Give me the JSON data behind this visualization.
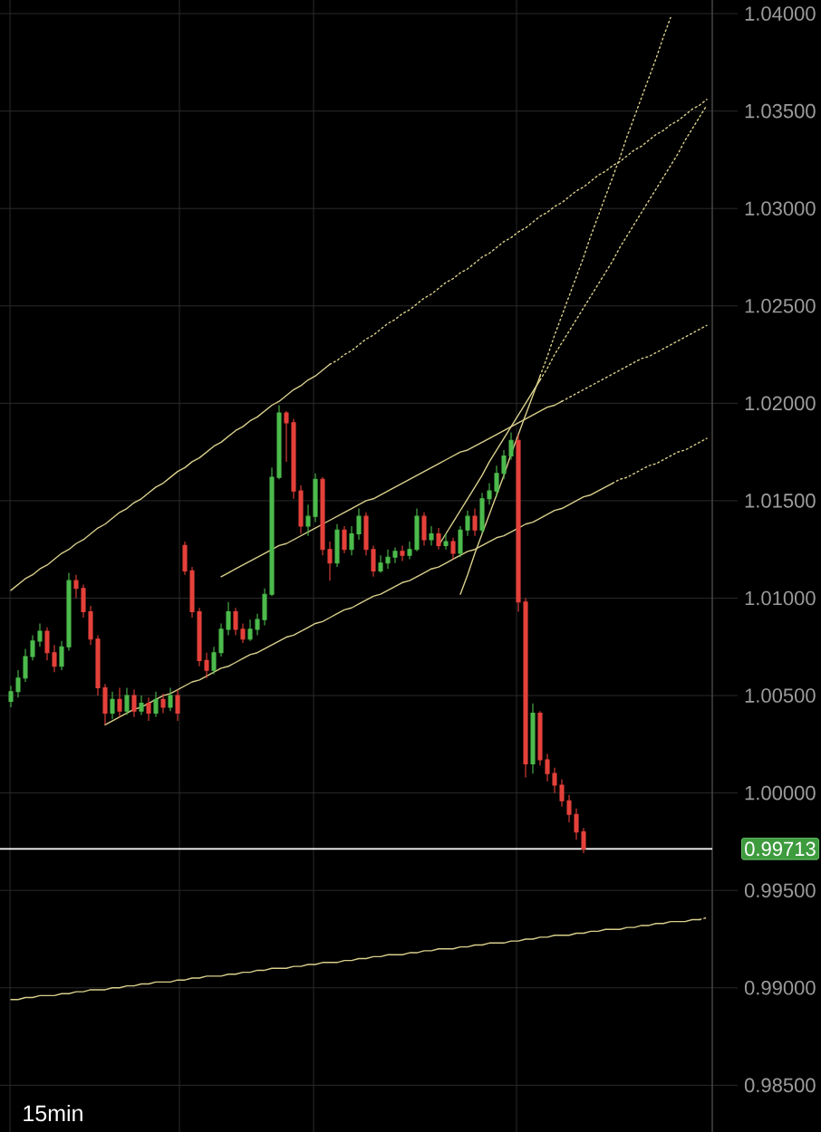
{
  "chart_data": {
    "type": "candlestick",
    "categories": [
      null,
      null,
      null,
      null,
      null,
      null,
      null,
      null,
      null,
      null,
      null,
      null,
      null,
      null,
      null,
      null,
      null,
      null,
      null,
      null,
      null,
      null,
      null,
      null,
      null,
      null,
      null,
      null,
      null,
      null,
      null,
      null,
      null,
      null,
      null,
      null,
      null,
      null,
      null,
      null,
      null,
      null,
      null,
      null,
      null,
      null,
      null,
      null,
      null,
      null,
      null,
      null,
      null,
      null,
      null,
      null,
      null,
      null,
      null,
      null,
      null,
      null,
      null,
      null,
      null,
      null,
      null,
      null,
      null,
      null,
      null,
      null,
      null,
      null,
      null,
      null,
      null,
      null,
      null,
      null,
      null,
      null,
      null,
      null,
      null,
      null,
      null,
      null,
      null,
      null,
      null,
      null,
      null,
      null,
      null,
      null,
      null
    ],
    "ohlc": [
      [
        1.0047,
        1.0055,
        1.0044,
        1.0052
      ],
      [
        1.0052,
        1.0063,
        1.0049,
        1.0059
      ],
      [
        1.0059,
        1.0074,
        1.0057,
        1.007
      ],
      [
        1.007,
        1.0081,
        1.0068,
        1.0078
      ],
      [
        1.0078,
        1.0087,
        1.0075,
        1.0083
      ],
      [
        1.0083,
        1.0085,
        1.0068,
        1.0072
      ],
      [
        1.0072,
        1.0076,
        1.0062,
        1.0065
      ],
      [
        1.0065,
        1.0078,
        1.0063,
        1.0075
      ],
      [
        1.0075,
        1.0113,
        1.0073,
        1.0109
      ],
      [
        1.0109,
        1.0112,
        1.01,
        1.0105
      ],
      [
        1.0105,
        1.0107,
        1.009,
        1.0093
      ],
      [
        1.0093,
        1.0096,
        1.0076,
        1.0079
      ],
      [
        1.0079,
        1.0081,
        1.005,
        1.0054
      ],
      [
        1.0054,
        1.0056,
        1.0035,
        1.0041
      ],
      [
        1.0041,
        1.0052,
        1.0038,
        1.0048
      ],
      [
        1.0048,
        1.0054,
        1.0039,
        1.0042
      ],
      [
        1.0042,
        1.0054,
        1.004,
        1.005
      ],
      [
        1.005,
        1.0053,
        1.0039,
        1.0042
      ],
      [
        1.0042,
        1.005,
        1.004,
        1.0046
      ],
      [
        1.0046,
        1.0049,
        1.0037,
        1.0041
      ],
      [
        1.0041,
        1.0052,
        1.0039,
        1.0048
      ],
      [
        1.0048,
        1.0051,
        1.0041,
        1.0044
      ],
      [
        1.0044,
        1.0054,
        1.0042,
        1.005
      ],
      [
        1.005,
        1.0053,
        1.0037,
        1.0041
      ],
      [
        1.0127,
        1.0129,
        1.0112,
        1.0114
      ],
      [
        1.0114,
        1.0116,
        1.009,
        1.0093
      ],
      [
        1.0093,
        1.0095,
        1.0065,
        1.0068
      ],
      [
        1.0068,
        1.0072,
        1.0059,
        1.0063
      ],
      [
        1.0063,
        1.0075,
        1.0061,
        1.0072
      ],
      [
        1.0072,
        1.0087,
        1.007,
        1.0084
      ],
      [
        1.0084,
        1.0098,
        1.0081,
        1.0093
      ],
      [
        1.0093,
        1.0095,
        1.0081,
        1.0084
      ],
      [
        1.0084,
        1.0087,
        1.0077,
        1.0079
      ],
      [
        1.0079,
        1.0089,
        1.0078,
        1.0084
      ],
      [
        1.0084,
        1.0092,
        1.0081,
        1.0089
      ],
      [
        1.0089,
        1.0105,
        1.0086,
        1.0102
      ],
      [
        1.0102,
        1.0167,
        1.0101,
        1.0162
      ],
      [
        1.0162,
        1.0199,
        1.0161,
        1.0195
      ],
      [
        1.0195,
        1.0196,
        1.017,
        1.019
      ],
      [
        1.019,
        1.0192,
        1.0151,
        1.0155
      ],
      [
        1.0155,
        1.0158,
        1.0133,
        1.0137
      ],
      [
        1.0137,
        1.0148,
        1.0132,
        1.0142
      ],
      [
        1.0142,
        1.0164,
        1.0139,
        1.0161
      ],
      [
        1.0161,
        1.0162,
        1.0122,
        1.0125
      ],
      [
        1.0125,
        1.0129,
        1.0109,
        1.0118
      ],
      [
        1.0118,
        1.0138,
        1.0116,
        1.0135
      ],
      [
        1.0135,
        1.0137,
        1.0123,
        1.0125
      ],
      [
        1.0125,
        1.0137,
        1.0122,
        1.0133
      ],
      [
        1.0133,
        1.0146,
        1.013,
        1.0142
      ],
      [
        1.0142,
        1.0144,
        1.0122,
        1.0125
      ],
      [
        1.0125,
        1.0127,
        1.0111,
        1.0114
      ],
      [
        1.0114,
        1.0122,
        1.0113,
        1.0118
      ],
      [
        1.0118,
        1.0125,
        1.0115,
        1.0121
      ],
      [
        1.0121,
        1.0126,
        1.0118,
        1.0124
      ],
      [
        1.0124,
        1.0127,
        1.0119,
        1.0122
      ],
      [
        1.0122,
        1.0129,
        1.012,
        1.0125
      ],
      [
        1.0125,
        1.0146,
        1.0124,
        1.0142
      ],
      [
        1.0142,
        1.0144,
        1.0127,
        1.013
      ],
      [
        1.013,
        1.0137,
        1.0127,
        1.0133
      ],
      [
        1.0133,
        1.0136,
        1.0125,
        1.0127
      ],
      [
        1.0127,
        1.0133,
        1.0125,
        1.0129
      ],
      [
        1.0129,
        1.0131,
        1.012,
        1.0123
      ],
      [
        1.0123,
        1.0137,
        1.0121,
        1.0135
      ],
      [
        1.0135,
        1.0145,
        1.0132,
        1.0142
      ],
      [
        1.0142,
        1.0146,
        1.0132,
        1.0135
      ],
      [
        1.0135,
        1.0154,
        1.0133,
        1.0151
      ],
      [
        1.0151,
        1.0159,
        1.0148,
        1.0155
      ],
      [
        1.0155,
        1.0168,
        1.0152,
        1.0164
      ],
      [
        1.0164,
        1.0176,
        1.0161,
        1.0173
      ],
      [
        1.0173,
        1.0185,
        1.0171,
        1.0181
      ],
      [
        1.0181,
        1.0184,
        1.0093,
        1.0098
      ],
      [
        1.0098,
        1.01,
        1.0008,
        1.0015
      ],
      [
        1.0015,
        1.0046,
        1.001,
        1.0041
      ],
      [
        1.0041,
        1.0042,
        1.0014,
        1.0017
      ],
      [
        1.0017,
        1.002,
        1.0006,
        1.001
      ],
      [
        1.001,
        1.0013,
        1.0,
        1.0004
      ],
      [
        1.0004,
        1.0007,
        0.9993,
        0.9996
      ],
      [
        0.9996,
        0.9999,
        0.9985,
        0.9989
      ],
      [
        0.9989,
        0.9992,
        0.9976,
        0.998
      ],
      [
        0.998,
        0.9982,
        0.9969,
        0.99713
      ],
      null,
      null,
      null,
      null,
      null,
      null,
      null,
      null,
      null,
      null,
      null,
      null,
      null,
      null,
      null,
      null,
      null
    ],
    "colors": [
      "#4cbb4c",
      "#4cbb4c",
      "#4cbb4c",
      "#4cbb4c",
      "#4cbb4c",
      "#e5413b",
      "#e5413b",
      "#4cbb4c",
      "#4cbb4c",
      "#e5413b",
      "#e5413b",
      "#e5413b",
      "#e5413b",
      "#e5413b",
      "#4cbb4c",
      "#e5413b",
      "#4cbb4c",
      "#e5413b",
      "#4cbb4c",
      "#e5413b",
      "#4cbb4c",
      "#e5413b",
      "#4cbb4c",
      "#e5413b",
      "#e5413b",
      "#e5413b",
      "#e5413b",
      "#e5413b",
      "#4cbb4c",
      "#4cbb4c",
      "#4cbb4c",
      "#e5413b",
      "#e5413b",
      "#4cbb4c",
      "#4cbb4c",
      "#4cbb4c",
      "#4cbb4c",
      "#4cbb4c",
      "#e5413b",
      "#e5413b",
      "#e5413b",
      "#4cbb4c",
      "#4cbb4c",
      "#e5413b",
      "#e5413b",
      "#4cbb4c",
      "#e5413b",
      "#4cbb4c",
      "#4cbb4c",
      "#e5413b",
      "#e5413b",
      "#4cbb4c",
      "#4cbb4c",
      "#4cbb4c",
      "#e5413b",
      "#4cbb4c",
      "#4cbb4c",
      "#e5413b",
      "#4cbb4c",
      "#e5413b",
      "#4cbb4c",
      "#e5413b",
      "#4cbb4c",
      "#4cbb4c",
      "#e5413b",
      "#4cbb4c",
      "#4cbb4c",
      "#4cbb4c",
      "#4cbb4c",
      "#4cbb4c",
      "#e5413b",
      "#e5413b",
      "#4cbb4c",
      "#e5413b",
      "#e5413b",
      "#e5413b",
      "#e5413b",
      "#e5413b",
      "#e5413b",
      "#e5413b",
      null,
      null,
      null,
      null,
      null,
      null,
      null,
      null,
      null,
      null,
      null,
      null,
      null,
      null,
      null,
      null,
      null
    ],
    "series": [
      {
        "type": "line",
        "color": "#d9cf8c",
        "line_style": "solid",
        "values": [
          1.0104,
          1.0107,
          1.011,
          1.0112,
          1.0115,
          1.0117,
          1.012,
          1.0123,
          1.0125,
          1.0128,
          1.013,
          1.0133,
          1.0136,
          1.0138,
          1.0141,
          1.0144,
          1.0146,
          1.0149,
          1.0151,
          1.0154,
          1.0157,
          1.0159,
          1.0162,
          1.0165,
          1.0167,
          1.017,
          1.0172,
          1.0175,
          1.0178,
          1.018,
          1.0183,
          1.0186,
          1.0188,
          1.0191,
          1.0193,
          1.0196,
          1.0199,
          1.0201,
          1.0204,
          1.0207,
          1.0209,
          1.0212,
          1.0214,
          1.0217,
          1.022,
          null,
          null,
          null,
          null,
          null,
          null,
          null,
          null,
          null,
          null,
          null,
          null,
          null,
          null,
          null,
          null,
          null,
          null,
          null,
          null,
          null,
          null,
          null,
          null,
          null,
          null,
          null,
          null,
          null,
          null,
          null,
          null,
          null,
          null,
          null,
          null,
          null,
          null,
          null,
          null,
          null,
          null,
          null,
          null,
          null,
          null,
          null,
          null,
          null,
          null,
          null,
          null
        ]
      },
      {
        "type": "line",
        "color": "#d9cf8c",
        "line_style": "dotted",
        "values": [
          null,
          null,
          null,
          null,
          null,
          null,
          null,
          null,
          null,
          null,
          null,
          null,
          null,
          null,
          null,
          null,
          null,
          null,
          null,
          null,
          null,
          null,
          null,
          null,
          null,
          null,
          null,
          null,
          null,
          null,
          null,
          null,
          null,
          null,
          null,
          null,
          null,
          null,
          null,
          null,
          null,
          null,
          null,
          null,
          1.022,
          1.0222,
          1.0225,
          1.0227,
          1.023,
          1.0233,
          1.0235,
          1.0238,
          1.0241,
          1.0243,
          1.0246,
          1.0248,
          1.0251,
          1.0254,
          1.0256,
          1.0259,
          1.0262,
          1.0264,
          1.0267,
          1.0269,
          1.0272,
          1.0275,
          1.0277,
          1.028,
          1.0283,
          1.0285,
          1.0288,
          1.029,
          1.0293,
          1.0296,
          1.0298,
          1.0301,
          1.0303,
          1.0306,
          1.0309,
          1.0311,
          1.0314,
          1.0317,
          1.0319,
          1.0322,
          1.0324,
          1.0327,
          1.033,
          1.0332,
          1.0335,
          1.0338,
          1.034,
          1.0343,
          1.0345,
          1.0348,
          1.0351,
          1.0353,
          1.0356
        ]
      },
      {
        "type": "line",
        "color": "#d9cf8c",
        "line_style": "solid",
        "values": [
          null,
          null,
          null,
          null,
          null,
          null,
          null,
          null,
          null,
          null,
          null,
          null,
          null,
          1.0035,
          1.0037,
          1.0039,
          1.0041,
          1.0043,
          1.0044,
          1.0046,
          1.0048,
          1.005,
          1.0051,
          1.0053,
          1.0055,
          1.0057,
          1.0058,
          1.006,
          1.0062,
          1.0064,
          1.0065,
          1.0067,
          1.0069,
          1.0071,
          1.0072,
          1.0074,
          1.0076,
          1.0078,
          1.008,
          1.0081,
          1.0083,
          1.0085,
          1.0087,
          1.0088,
          1.009,
          1.0092,
          1.0094,
          1.0095,
          1.0097,
          1.0099,
          1.0101,
          1.0102,
          1.0104,
          1.0106,
          1.0108,
          1.0109,
          1.0111,
          1.0113,
          1.0115,
          1.0116,
          1.0118,
          1.012,
          1.0122,
          1.0124,
          1.0125,
          1.0127,
          1.0129,
          1.0131,
          1.0132,
          1.0134,
          1.0136,
          1.0138,
          1.0139,
          1.0141,
          1.0143,
          1.0145,
          1.0146,
          1.0148,
          1.015,
          1.0152,
          1.0153,
          1.0155,
          1.0157,
          1.0159,
          null,
          null,
          null,
          null,
          null,
          null,
          null,
          null,
          null,
          null,
          null,
          null,
          null
        ]
      },
      {
        "type": "line",
        "color": "#d9cf8c",
        "line_style": "dotted",
        "values": [
          null,
          null,
          null,
          null,
          null,
          null,
          null,
          null,
          null,
          null,
          null,
          null,
          null,
          null,
          null,
          null,
          null,
          null,
          null,
          null,
          null,
          null,
          null,
          null,
          null,
          null,
          null,
          null,
          null,
          null,
          null,
          null,
          null,
          null,
          null,
          null,
          null,
          null,
          null,
          null,
          null,
          null,
          null,
          null,
          null,
          null,
          null,
          null,
          null,
          null,
          null,
          null,
          null,
          null,
          null,
          null,
          null,
          null,
          null,
          null,
          null,
          null,
          null,
          null,
          null,
          null,
          null,
          null,
          null,
          null,
          null,
          null,
          null,
          null,
          null,
          null,
          null,
          null,
          null,
          null,
          null,
          null,
          null,
          1.0159,
          1.0161,
          1.0162,
          1.0164,
          1.0166,
          1.0168,
          1.0169,
          1.0171,
          1.0173,
          1.0175,
          1.0176,
          1.0178,
          1.018,
          1.0182
        ]
      },
      {
        "type": "line",
        "color": "#d9cf8c",
        "line_style": "solid",
        "values": [
          null,
          null,
          null,
          null,
          null,
          null,
          null,
          null,
          null,
          null,
          null,
          null,
          null,
          null,
          null,
          null,
          null,
          null,
          null,
          null,
          null,
          null,
          null,
          null,
          null,
          null,
          null,
          null,
          null,
          1.0111,
          1.0113,
          1.0115,
          1.0117,
          1.0119,
          1.0121,
          1.0123,
          1.0125,
          1.0127,
          1.0128,
          1.013,
          1.0132,
          1.0134,
          1.0136,
          1.0138,
          1.014,
          1.0142,
          1.0144,
          1.0146,
          1.0148,
          1.015,
          1.0151,
          1.0153,
          1.0155,
          1.0157,
          1.0159,
          1.0161,
          1.0163,
          1.0165,
          1.0167,
          1.0169,
          1.0171,
          1.0173,
          1.0175,
          1.0176,
          1.0178,
          1.018,
          1.0182,
          1.0184,
          1.0186,
          1.0188,
          1.019,
          1.0192,
          1.0194,
          1.0196,
          1.0198,
          1.0199,
          1.0201,
          null,
          null,
          null,
          null,
          null,
          null,
          null,
          null,
          null,
          null,
          null,
          null,
          null,
          null,
          null,
          null,
          null,
          null,
          null,
          null
        ]
      },
      {
        "type": "line",
        "color": "#d9cf8c",
        "line_style": "dotted",
        "values": [
          null,
          null,
          null,
          null,
          null,
          null,
          null,
          null,
          null,
          null,
          null,
          null,
          null,
          null,
          null,
          null,
          null,
          null,
          null,
          null,
          null,
          null,
          null,
          null,
          null,
          null,
          null,
          null,
          null,
          null,
          null,
          null,
          null,
          null,
          null,
          null,
          null,
          null,
          null,
          null,
          null,
          null,
          null,
          null,
          null,
          null,
          null,
          null,
          null,
          null,
          null,
          null,
          null,
          null,
          null,
          null,
          null,
          null,
          null,
          null,
          null,
          null,
          null,
          null,
          null,
          null,
          null,
          null,
          null,
          null,
          null,
          null,
          null,
          null,
          null,
          null,
          1.0201,
          1.0203,
          1.0205,
          1.0207,
          1.0209,
          1.0211,
          1.0213,
          1.0215,
          1.0217,
          1.0219,
          1.0221,
          1.0223,
          1.0224,
          1.0226,
          1.0228,
          1.023,
          1.0232,
          1.0234,
          1.0236,
          1.0238,
          1.024
        ]
      },
      {
        "type": "line",
        "color": "#d9cf8c",
        "line_style": "solid",
        "values": [
          null,
          null,
          null,
          null,
          null,
          null,
          null,
          null,
          null,
          null,
          null,
          null,
          null,
          null,
          null,
          null,
          null,
          null,
          null,
          null,
          null,
          null,
          null,
          null,
          null,
          null,
          null,
          null,
          null,
          null,
          null,
          null,
          null,
          null,
          null,
          null,
          null,
          null,
          null,
          null,
          null,
          null,
          null,
          null,
          null,
          null,
          null,
          null,
          null,
          null,
          null,
          null,
          null,
          null,
          null,
          null,
          null,
          null,
          null,
          null,
          null,
          null,
          1.0102,
          1.0112,
          1.0123,
          1.0133,
          1.0143,
          1.0153,
          1.0163,
          1.0174,
          1.0184,
          1.0194,
          1.0204,
          1.0214,
          null,
          null,
          null,
          null,
          null,
          null,
          null,
          null,
          null,
          null,
          null,
          null,
          null,
          null,
          null,
          null,
          null,
          null,
          null,
          null,
          null,
          null,
          null
        ]
      },
      {
        "type": "line",
        "color": "#d9cf8c",
        "line_style": "dotted",
        "values": [
          null,
          null,
          null,
          null,
          null,
          null,
          null,
          null,
          null,
          null,
          null,
          null,
          null,
          null,
          null,
          null,
          null,
          null,
          null,
          null,
          null,
          null,
          null,
          null,
          null,
          null,
          null,
          null,
          null,
          null,
          null,
          null,
          null,
          null,
          null,
          null,
          null,
          null,
          null,
          null,
          null,
          null,
          null,
          null,
          null,
          null,
          null,
          null,
          null,
          null,
          null,
          null,
          null,
          null,
          null,
          null,
          null,
          null,
          null,
          null,
          null,
          null,
          null,
          null,
          null,
          null,
          null,
          null,
          null,
          null,
          null,
          null,
          null,
          1.0214,
          1.0224,
          1.0235,
          1.0245,
          1.0255,
          1.0265,
          1.0275,
          1.0286,
          1.0296,
          1.0306,
          1.0316,
          1.0326,
          1.0337,
          1.0347,
          1.0357,
          1.0367,
          1.0377,
          1.0388,
          1.0398,
          null,
          null,
          null,
          null,
          null
        ]
      },
      {
        "type": "line",
        "color": "#d9cf8c",
        "line_style": "solid",
        "values": [
          null,
          null,
          null,
          null,
          null,
          null,
          null,
          null,
          null,
          null,
          null,
          null,
          null,
          null,
          null,
          null,
          null,
          null,
          null,
          null,
          null,
          null,
          null,
          null,
          null,
          null,
          null,
          null,
          null,
          null,
          null,
          null,
          null,
          null,
          null,
          null,
          null,
          null,
          null,
          null,
          null,
          null,
          null,
          null,
          null,
          null,
          null,
          null,
          null,
          null,
          null,
          null,
          null,
          null,
          null,
          null,
          null,
          null,
          null,
          1.0127,
          1.0133,
          1.0139,
          1.0145,
          1.0151,
          1.0157,
          1.0163,
          1.017,
          1.0176,
          1.0182,
          1.0188,
          1.0194,
          1.02,
          1.0206,
          1.0212,
          null,
          null,
          null,
          null,
          null,
          null,
          null,
          null,
          null,
          null,
          null,
          null,
          null,
          null,
          null,
          null,
          null,
          null,
          null,
          null,
          null,
          null,
          null
        ]
      },
      {
        "type": "line",
        "color": "#d9cf8c",
        "line_style": "dotted",
        "values": [
          null,
          null,
          null,
          null,
          null,
          null,
          null,
          null,
          null,
          null,
          null,
          null,
          null,
          null,
          null,
          null,
          null,
          null,
          null,
          null,
          null,
          null,
          null,
          null,
          null,
          null,
          null,
          null,
          null,
          null,
          null,
          null,
          null,
          null,
          null,
          null,
          null,
          null,
          null,
          null,
          null,
          null,
          null,
          null,
          null,
          null,
          null,
          null,
          null,
          null,
          null,
          null,
          null,
          null,
          null,
          null,
          null,
          null,
          null,
          null,
          null,
          null,
          null,
          null,
          null,
          null,
          null,
          null,
          null,
          null,
          null,
          null,
          null,
          1.0212,
          1.0218,
          1.0225,
          1.0231,
          1.0237,
          1.0243,
          1.0249,
          1.0255,
          1.0261,
          1.0267,
          1.0273,
          1.028,
          1.0286,
          1.0292,
          1.0298,
          1.0304,
          1.031,
          1.0316,
          1.0322,
          1.0328,
          1.0335,
          1.0341,
          1.0347,
          1.0353
        ]
      },
      {
        "type": "line",
        "color": "#d9cf8c",
        "line_style": "solid",
        "values": [
          0.9894,
          0.9894,
          0.9895,
          0.9895,
          0.9896,
          0.9896,
          0.9896,
          0.9897,
          0.9897,
          0.9898,
          0.9898,
          0.9899,
          0.9899,
          0.9899,
          0.99,
          0.99,
          0.9901,
          0.9901,
          0.9902,
          0.9902,
          0.9903,
          0.9903,
          0.9903,
          0.9904,
          0.9904,
          0.9905,
          0.9905,
          0.9906,
          0.9906,
          0.9906,
          0.9907,
          0.9907,
          0.9908,
          0.9908,
          0.9909,
          0.9909,
          0.991,
          0.991,
          0.991,
          0.9911,
          0.9911,
          0.9912,
          0.9912,
          0.9913,
          0.9913,
          0.9913,
          0.9914,
          0.9914,
          0.9915,
          0.9915,
          0.9916,
          0.9916,
          0.9917,
          0.9917,
          0.9917,
          0.9918,
          0.9918,
          0.9919,
          0.9919,
          0.992,
          0.992,
          0.992,
          0.9921,
          0.9921,
          0.9922,
          0.9922,
          0.9923,
          0.9923,
          0.9923,
          0.9924,
          0.9924,
          0.9925,
          0.9925,
          0.9926,
          0.9926,
          0.9927,
          0.9927,
          0.9927,
          0.9928,
          0.9928,
          0.9929,
          0.9929,
          0.993,
          0.993,
          0.993,
          0.9931,
          0.9931,
          0.9932,
          0.9932,
          0.9933,
          0.9933,
          0.9934,
          0.9934,
          0.9934,
          0.9935,
          0.9935,
          null
        ]
      },
      {
        "type": "line",
        "color": "#d9cf8c",
        "line_style": "dotted",
        "values": [
          null,
          null,
          null,
          null,
          null,
          null,
          null,
          null,
          null,
          null,
          null,
          null,
          null,
          null,
          null,
          null,
          null,
          null,
          null,
          null,
          null,
          null,
          null,
          null,
          null,
          null,
          null,
          null,
          null,
          null,
          null,
          null,
          null,
          null,
          null,
          null,
          null,
          null,
          null,
          null,
          null,
          null,
          null,
          null,
          null,
          null,
          null,
          null,
          null,
          null,
          null,
          null,
          null,
          null,
          null,
          null,
          null,
          null,
          null,
          null,
          null,
          null,
          null,
          null,
          null,
          null,
          null,
          null,
          null,
          null,
          null,
          null,
          null,
          null,
          null,
          null,
          null,
          null,
          null,
          null,
          null,
          null,
          null,
          null,
          null,
          null,
          null,
          null,
          null,
          null,
          null,
          null,
          null,
          null,
          null,
          0.9935,
          0.9936
        ]
      }
    ],
    "ref_lines": [
      {
        "axis": "y",
        "value": 0.99713,
        "label": "0.99713",
        "color": "#ffffff"
      }
    ],
    "annotations": [
      "15min"
    ],
    "ylim": [
      0.9826,
      1.0407
    ],
    "yticks": [
      {
        "value": 0.985,
        "label": "0.98500"
      },
      {
        "value": 0.99,
        "label": "0.99000"
      },
      {
        "value": 0.995,
        "label": "0.99500"
      },
      {
        "value": 1.0,
        "label": "1.00000"
      },
      {
        "value": 1.005,
        "label": "1.00500"
      },
      {
        "value": 1.01,
        "label": "1.01000"
      },
      {
        "value": 1.015,
        "label": "1.01500"
      },
      {
        "value": 1.02,
        "label": "1.02000"
      },
      {
        "value": 1.025,
        "label": "1.02500"
      },
      {
        "value": 1.03,
        "label": "1.03000"
      },
      {
        "value": 1.035,
        "label": "1.03500"
      },
      {
        "value": 1.04,
        "label": "1.04000"
      }
    ],
    "grid": true,
    "tick_labels": "y"
  }
}
